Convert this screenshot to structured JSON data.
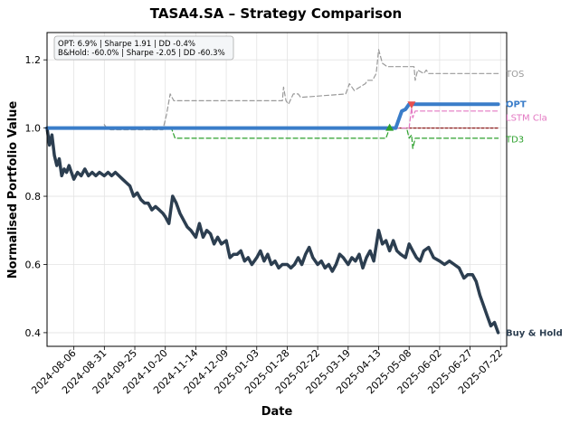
{
  "chart_data": {
    "type": "line",
    "title": "TASA4.SA – Strategy Comparison",
    "xlabel": "Date",
    "ylabel": "Normalised Portfolio Value",
    "xlim": [
      "2024-07-15",
      "2025-07-27"
    ],
    "ylim": [
      0.36,
      1.28
    ],
    "yticks": [
      0.4,
      0.6,
      0.8,
      1.0,
      1.2
    ],
    "xticks": [
      "2024-08-06",
      "2024-08-31",
      "2024-09-25",
      "2024-10-20",
      "2024-11-14",
      "2024-12-09",
      "2025-01-03",
      "2025-01-28",
      "2025-02-22",
      "2025-03-19",
      "2025-04-13",
      "2025-05-08",
      "2025-06-02",
      "2025-06-27",
      "2025-07-22"
    ],
    "grid": true,
    "annotation": {
      "line1": "OPT: 6.9% | Sharpe 1.91 | DD -0.4%",
      "line2": "B&Hold: -60.0% | Sharpe -2.05 | DD -60.3%",
      "placement": "top-left"
    },
    "series": [
      {
        "name": "Buy & Hold",
        "color": "#2c3e50",
        "style": "solid-thick",
        "label": "Buy & Hold",
        "points": [
          [
            "2024-07-15",
            1.0
          ],
          [
            "2024-07-17",
            0.95
          ],
          [
            "2024-07-19",
            0.98
          ],
          [
            "2024-07-21",
            0.92
          ],
          [
            "2024-07-23",
            0.89
          ],
          [
            "2024-07-25",
            0.91
          ],
          [
            "2024-07-27",
            0.86
          ],
          [
            "2024-07-29",
            0.88
          ],
          [
            "2024-07-31",
            0.87
          ],
          [
            "2024-08-02",
            0.89
          ],
          [
            "2024-08-04",
            0.87
          ],
          [
            "2024-08-06",
            0.85
          ],
          [
            "2024-08-09",
            0.87
          ],
          [
            "2024-08-12",
            0.86
          ],
          [
            "2024-08-15",
            0.88
          ],
          [
            "2024-08-18",
            0.86
          ],
          [
            "2024-08-21",
            0.87
          ],
          [
            "2024-08-24",
            0.86
          ],
          [
            "2024-08-27",
            0.87
          ],
          [
            "2024-08-31",
            0.86
          ],
          [
            "2024-09-03",
            0.87
          ],
          [
            "2024-09-06",
            0.86
          ],
          [
            "2024-09-09",
            0.87
          ],
          [
            "2024-09-12",
            0.86
          ],
          [
            "2024-09-15",
            0.85
          ],
          [
            "2024-09-18",
            0.84
          ],
          [
            "2024-09-21",
            0.83
          ],
          [
            "2024-09-24",
            0.8
          ],
          [
            "2024-09-27",
            0.81
          ],
          [
            "2024-09-30",
            0.79
          ],
          [
            "2024-10-03",
            0.78
          ],
          [
            "2024-10-06",
            0.78
          ],
          [
            "2024-10-09",
            0.76
          ],
          [
            "2024-10-12",
            0.77
          ],
          [
            "2024-10-15",
            0.76
          ],
          [
            "2024-10-18",
            0.75
          ],
          [
            "2024-10-20",
            0.74
          ],
          [
            "2024-10-23",
            0.72
          ],
          [
            "2024-10-26",
            0.8
          ],
          [
            "2024-10-29",
            0.78
          ],
          [
            "2024-11-01",
            0.75
          ],
          [
            "2024-11-04",
            0.73
          ],
          [
            "2024-11-07",
            0.71
          ],
          [
            "2024-11-10",
            0.7
          ],
          [
            "2024-11-14",
            0.68
          ],
          [
            "2024-11-17",
            0.72
          ],
          [
            "2024-11-20",
            0.68
          ],
          [
            "2024-11-23",
            0.7
          ],
          [
            "2024-11-26",
            0.69
          ],
          [
            "2024-11-29",
            0.66
          ],
          [
            "2024-12-02",
            0.68
          ],
          [
            "2024-12-05",
            0.66
          ],
          [
            "2024-12-09",
            0.67
          ],
          [
            "2024-12-12",
            0.62
          ],
          [
            "2024-12-15",
            0.63
          ],
          [
            "2024-12-18",
            0.63
          ],
          [
            "2024-12-21",
            0.64
          ],
          [
            "2024-12-24",
            0.61
          ],
          [
            "2024-12-27",
            0.62
          ],
          [
            "2024-12-30",
            0.6
          ],
          [
            "2025-01-03",
            0.62
          ],
          [
            "2025-01-06",
            0.64
          ],
          [
            "2025-01-09",
            0.61
          ],
          [
            "2025-01-12",
            0.63
          ],
          [
            "2025-01-15",
            0.6
          ],
          [
            "2025-01-18",
            0.61
          ],
          [
            "2025-01-21",
            0.59
          ],
          [
            "2025-01-24",
            0.6
          ],
          [
            "2025-01-28",
            0.6
          ],
          [
            "2025-01-31",
            0.59
          ],
          [
            "2025-02-03",
            0.6
          ],
          [
            "2025-02-06",
            0.62
          ],
          [
            "2025-02-09",
            0.6
          ],
          [
            "2025-02-12",
            0.63
          ],
          [
            "2025-02-15",
            0.65
          ],
          [
            "2025-02-18",
            0.62
          ],
          [
            "2025-02-22",
            0.6
          ],
          [
            "2025-02-25",
            0.61
          ],
          [
            "2025-02-28",
            0.59
          ],
          [
            "2025-03-03",
            0.6
          ],
          [
            "2025-03-06",
            0.58
          ],
          [
            "2025-03-09",
            0.6
          ],
          [
            "2025-03-12",
            0.63
          ],
          [
            "2025-03-15",
            0.62
          ],
          [
            "2025-03-19",
            0.6
          ],
          [
            "2025-03-22",
            0.62
          ],
          [
            "2025-03-25",
            0.61
          ],
          [
            "2025-03-28",
            0.63
          ],
          [
            "2025-03-31",
            0.59
          ],
          [
            "2025-04-03",
            0.62
          ],
          [
            "2025-04-06",
            0.64
          ],
          [
            "2025-04-09",
            0.61
          ],
          [
            "2025-04-13",
            0.7
          ],
          [
            "2025-04-16",
            0.66
          ],
          [
            "2025-04-19",
            0.67
          ],
          [
            "2025-04-22",
            0.64
          ],
          [
            "2025-04-25",
            0.67
          ],
          [
            "2025-04-28",
            0.64
          ],
          [
            "2025-05-01",
            0.63
          ],
          [
            "2025-05-05",
            0.62
          ],
          [
            "2025-05-08",
            0.66
          ],
          [
            "2025-05-11",
            0.64
          ],
          [
            "2025-05-14",
            0.62
          ],
          [
            "2025-05-17",
            0.61
          ],
          [
            "2025-05-20",
            0.64
          ],
          [
            "2025-05-24",
            0.65
          ],
          [
            "2025-05-28",
            0.62
          ],
          [
            "2025-06-02",
            0.61
          ],
          [
            "2025-06-06",
            0.6
          ],
          [
            "2025-06-10",
            0.61
          ],
          [
            "2025-06-14",
            0.6
          ],
          [
            "2025-06-18",
            0.59
          ],
          [
            "2025-06-22",
            0.56
          ],
          [
            "2025-06-25",
            0.57
          ],
          [
            "2025-06-29",
            0.57
          ],
          [
            "2025-07-02",
            0.55
          ],
          [
            "2025-07-05",
            0.51
          ],
          [
            "2025-07-08",
            0.48
          ],
          [
            "2025-07-11",
            0.45
          ],
          [
            "2025-07-14",
            0.42
          ],
          [
            "2025-07-17",
            0.43
          ],
          [
            "2025-07-20",
            0.4
          ]
        ]
      },
      {
        "name": "OPT",
        "color": "#3a7dc9",
        "style": "solid-thick",
        "label": "OPT",
        "points": [
          [
            "2024-07-15",
            1.0
          ],
          [
            "2025-04-27",
            1.0
          ],
          [
            "2025-04-30",
            1.03
          ],
          [
            "2025-05-02",
            1.05
          ],
          [
            "2025-05-05",
            1.055
          ],
          [
            "2025-05-08",
            1.07
          ],
          [
            "2025-07-20",
            1.07
          ]
        ]
      },
      {
        "name": "TOS",
        "color": "#999999",
        "style": "dashed",
        "label": "TOS",
        "points": [
          [
            "2024-08-31",
            1.01
          ],
          [
            "2024-09-02",
            1.0
          ],
          [
            "2024-09-05",
            0.995
          ],
          [
            "2024-10-18",
            0.995
          ],
          [
            "2024-10-21",
            1.04
          ],
          [
            "2024-10-24",
            1.1
          ],
          [
            "2024-10-27",
            1.08
          ],
          [
            "2025-01-24",
            1.08
          ],
          [
            "2025-01-25",
            1.12
          ],
          [
            "2025-01-27",
            1.08
          ],
          [
            "2025-01-29",
            1.07
          ],
          [
            "2025-02-02",
            1.1
          ],
          [
            "2025-02-06",
            1.1
          ],
          [
            "2025-02-08",
            1.09
          ],
          [
            "2025-03-17",
            1.1
          ],
          [
            "2025-03-20",
            1.13
          ],
          [
            "2025-03-22",
            1.12
          ],
          [
            "2025-03-24",
            1.11
          ],
          [
            "2025-04-02",
            1.13
          ],
          [
            "2025-04-04",
            1.14
          ],
          [
            "2025-04-08",
            1.14
          ],
          [
            "2025-04-11",
            1.16
          ],
          [
            "2025-04-13",
            1.23
          ],
          [
            "2025-04-16",
            1.19
          ],
          [
            "2025-04-20",
            1.18
          ],
          [
            "2025-05-12",
            1.18
          ],
          [
            "2025-05-13",
            1.14
          ],
          [
            "2025-05-15",
            1.17
          ],
          [
            "2025-05-20",
            1.16
          ],
          [
            "2025-05-22",
            1.17
          ],
          [
            "2025-05-24",
            1.16
          ],
          [
            "2025-07-20",
            1.16
          ]
        ]
      },
      {
        "name": "LSTM Cla",
        "color": "#e377c2",
        "style": "dashed",
        "label": "LSTM Cla",
        "points": [
          [
            "2024-07-15",
            1.0
          ],
          [
            "2025-05-08",
            1.0
          ],
          [
            "2025-05-10",
            1.06
          ],
          [
            "2025-05-11",
            1.03
          ],
          [
            "2025-05-13",
            1.05
          ],
          [
            "2025-07-20",
            1.05
          ]
        ]
      },
      {
        "name": "TD3",
        "color": "#2ca02c",
        "style": "dashed",
        "label": "TD3",
        "points": [
          [
            "2024-07-15",
            1.0
          ],
          [
            "2024-10-25",
            1.0
          ],
          [
            "2024-10-28",
            0.97
          ],
          [
            "2025-04-19",
            0.97
          ],
          [
            "2025-04-22",
            1.0
          ],
          [
            "2025-05-06",
            1.0
          ],
          [
            "2025-05-08",
            0.97
          ],
          [
            "2025-05-10",
            0.98
          ],
          [
            "2025-05-11",
            0.94
          ],
          [
            "2025-05-13",
            0.97
          ],
          [
            "2025-07-20",
            0.97
          ]
        ]
      },
      {
        "name": "Baseline",
        "color": "#8b1a1a",
        "style": "dashed",
        "label": "",
        "points": [
          [
            "2024-07-15",
            1.0
          ],
          [
            "2025-07-20",
            1.0
          ]
        ]
      }
    ],
    "markers": [
      {
        "date": "2025-04-22",
        "value": 1.0,
        "shape": "triangle-up",
        "color": "#2ca02c"
      },
      {
        "date": "2025-05-10",
        "value": 1.07,
        "shape": "triangle-down",
        "color": "#e55050"
      }
    ]
  }
}
